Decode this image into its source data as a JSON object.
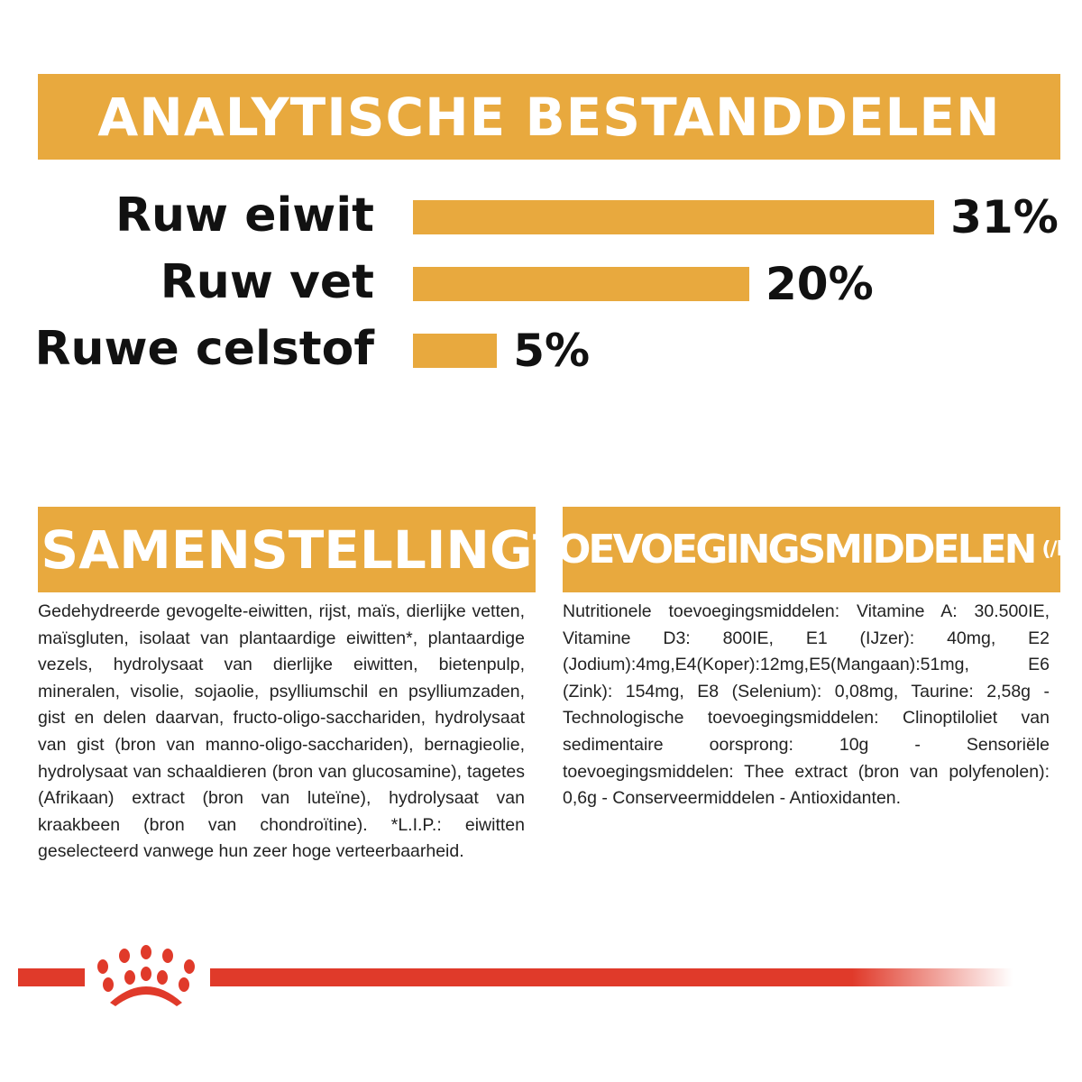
{
  "header": {
    "title": "ANALYTISCHE BESTANDDELEN"
  },
  "chart_data": {
    "type": "bar",
    "orientation": "horizontal",
    "categories": [
      "Ruw eiwit",
      "Ruw vet",
      "Ruwe celstof"
    ],
    "values": [
      31,
      20,
      5
    ],
    "value_labels": [
      "31%",
      "20%",
      "5%"
    ],
    "unit": "%",
    "bar_color": "#E8A93E",
    "grid": false
  },
  "samenstelling": {
    "title": "SAMENSTELLING",
    "text": "Gedehydreerde gevogelte-eiwitten, rijst, maïs, dierlijke vetten, maïsgluten, isolaat van plantaardige eiwitten*, plantaardige vezels, hydrolysaat van dierlijke eiwitten, bietenpulp, mineralen, visolie, sojaolie, psylliumschil en psylliumzaden, gist en delen daarvan, fructo-oligo-sacchariden, hydrolysaat van gist (bron van manno-oligo-sacchariden), bernagieolie, hydrolysaat van schaaldieren (bron van glucosamine), tagetes (Afrikaan) extract (bron van luteïne), hydrolysaat van kraakbeen (bron van chondroïtine). *L.I.P.: eiwitten geselecteerd vanwege hun zeer hoge verteerbaarheid."
  },
  "toevoegingsmiddelen": {
    "title": "TOEVOEGINGSMIDDELEN",
    "unit": "(/kg)",
    "text": "Nutritionele toevoegingsmiddelen: Vitamine A: 30.500IE, Vitamine D3: 800IE, E1 (IJzer): 40mg, E2 (Jodium):4mg,E4(Koper):12mg,E5(Mangaan):51mg, E6 (Zink): 154mg, E8 (Selenium): 0,08mg, Taurine: 2,58g - Technologische toevoegingsmiddelen: Clinoptiloliet van sedimentaire oorsprong: 10g - Sensoriële toevoegingsmiddelen: Thee extract (bron van polyfenolen): 0,6g - Conserveermiddelen - Antioxidanten."
  },
  "colors": {
    "accent": "#E8A93E",
    "brand_red": "#E03A2A"
  },
  "logo": {
    "icon": "royal-canin-crown-icon"
  }
}
